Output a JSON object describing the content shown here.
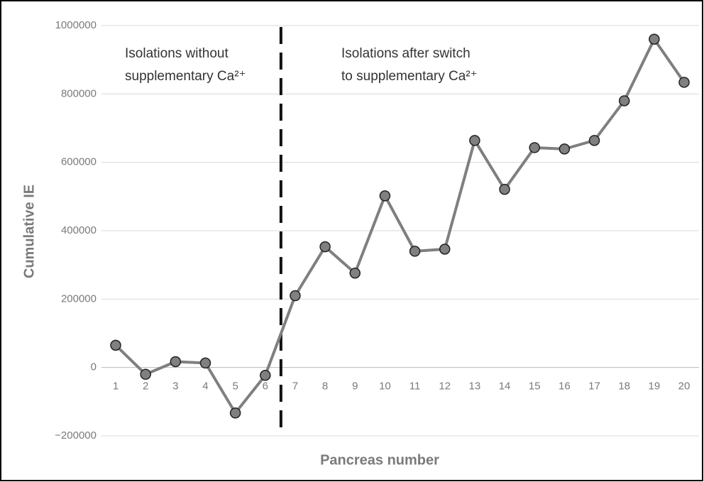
{
  "chart_data": {
    "type": "line",
    "x_label": "Pancreas number",
    "y_label": "Cumulative IE",
    "categories": [
      "1",
      "2",
      "3",
      "4",
      "5",
      "6",
      "7",
      "8",
      "9",
      "10",
      "11",
      "12",
      "13",
      "14",
      "15",
      "16",
      "17",
      "18",
      "19",
      "20"
    ],
    "values": [
      65000,
      -20000,
      17000,
      13000,
      -133000,
      -23000,
      210000,
      353000,
      276000,
      502000,
      340000,
      346000,
      664000,
      521000,
      643000,
      639000,
      664000,
      780000,
      960000,
      834000
    ],
    "color": "#7f7f7f",
    "marker_color": "#808080",
    "ylim": [
      -200000,
      1000000
    ],
    "yticks": [
      {
        "value": -200000,
        "label": "−200000"
      },
      0,
      200000,
      400000,
      600000,
      800000,
      1000000
    ],
    "grid": true,
    "annotations": [
      {
        "lines": [
          "Isolations without",
          "supplementary Ca²⁺"
        ]
      },
      {
        "lines": [
          "Isolations after switch",
          "to supplementary Ca²⁺"
        ]
      }
    ]
  }
}
